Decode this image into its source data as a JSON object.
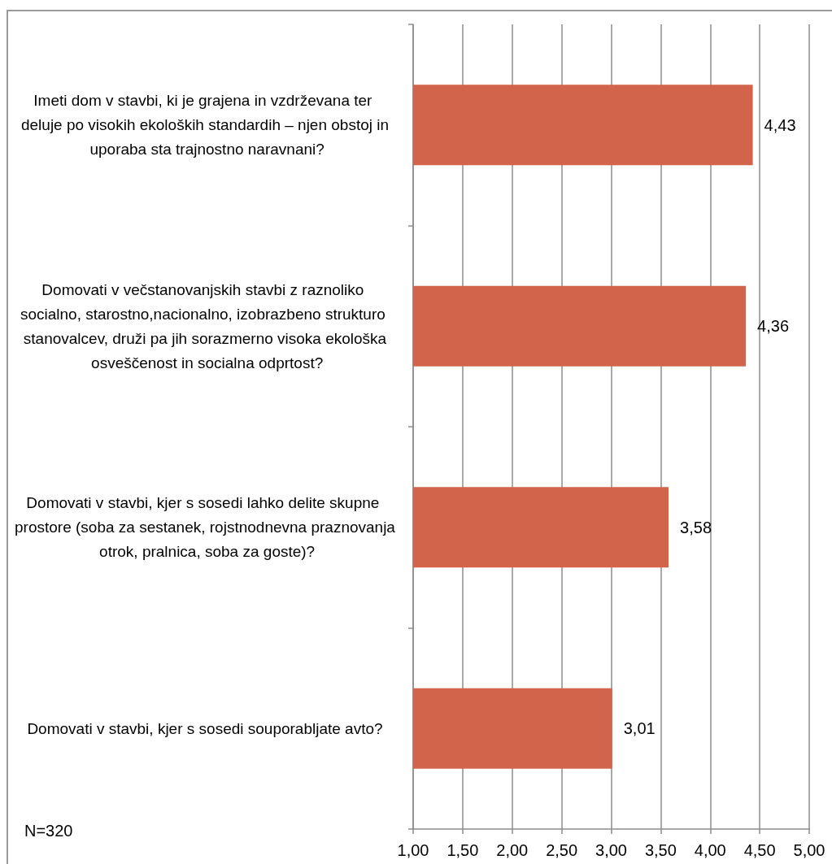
{
  "chart_data": {
    "type": "bar",
    "orientation": "horizontal",
    "categories": [
      "Imeti dom v stavbi, ki je grajena in vzdrževana ter deluje po visokih ekoloških standardih – njen obstoj in uporaba sta trajnostno naravnani?",
      "Domovati v večstanovanjskih stavbi z raznoliko socialno, starostno,nacionalno, izobrazbeno strukturo stanovalcev, druži pa jih sorazmerno visoka ekološka osveščenost in socialna odprtost?",
      "Domovati v stavbi, kjer s sosedi lahko delite skupne prostore (soba za sestanek, rojstnodnevna praznovanja otrok, pralnica, soba za goste)?",
      "Domovati v stavbi, kjer s sosedi souporabljate avto?"
    ],
    "values": [
      4.43,
      4.36,
      3.58,
      3.01
    ],
    "value_labels": [
      "4,43",
      "4,36",
      "3,58",
      "3,01"
    ],
    "color": "#d1644a",
    "xlim": [
      1,
      5
    ],
    "xticks": [
      {
        "value": 1,
        "label": "1,00"
      },
      {
        "value": 1.5,
        "label": "1,50"
      },
      {
        "value": 2,
        "label": "2,00"
      },
      {
        "value": 2.5,
        "label": "2,50"
      },
      {
        "value": 3,
        "label": "3,00"
      },
      {
        "value": 3.5,
        "label": "3,50"
      },
      {
        "value": 4,
        "label": "4,00"
      },
      {
        "value": 4.5,
        "label": "4,50"
      },
      {
        "value": 5,
        "label": "5,00"
      }
    ],
    "grid": "x",
    "annotations": [
      "N=320"
    ]
  }
}
